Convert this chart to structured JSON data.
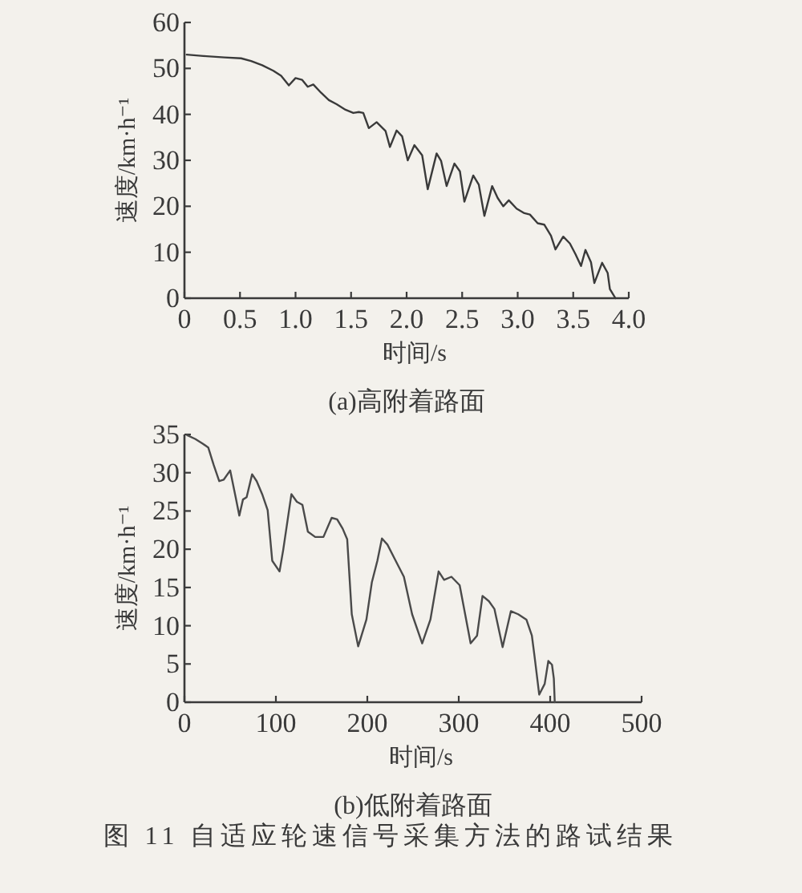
{
  "chart_data": [
    {
      "type": "line",
      "title": "(a)高附着路面",
      "xlabel": "时间/s",
      "ylabel": "速度/km·h⁻¹",
      "x": [
        0.02,
        0.17,
        0.36,
        0.51,
        0.6,
        0.7,
        0.8,
        0.87,
        0.94,
        1.0,
        1.06,
        1.11,
        1.16,
        1.23,
        1.3,
        1.37,
        1.45,
        1.52,
        1.57,
        1.61,
        1.66,
        1.73,
        1.81,
        1.85,
        1.91,
        1.96,
        2.01,
        2.07,
        2.14,
        2.19,
        2.27,
        2.31,
        2.36,
        2.43,
        2.48,
        2.52,
        2.6,
        2.65,
        2.7,
        2.77,
        2.82,
        2.87,
        2.92,
        2.99,
        3.06,
        3.11,
        3.18,
        3.24,
        3.3,
        3.34,
        3.41,
        3.47,
        3.52,
        3.57,
        3.61,
        3.66,
        3.69,
        3.76,
        3.81,
        3.83,
        3.88
      ],
      "series": [
        {
          "color": "#3a3a3a",
          "values": [
            53.0,
            52.7,
            52.4,
            52.2,
            51.6,
            50.7,
            49.5,
            48.4,
            46.3,
            47.9,
            47.5,
            46.0,
            46.5,
            44.7,
            43.1,
            42.2,
            41.0,
            40.3,
            40.5,
            40.3,
            37.0,
            38.3,
            36.4,
            32.9,
            36.5,
            35.2,
            30.0,
            33.3,
            31.1,
            23.7,
            31.5,
            29.9,
            24.4,
            29.3,
            27.6,
            21.0,
            26.7,
            24.7,
            17.9,
            24.4,
            21.8,
            20.0,
            21.3,
            19.5,
            18.5,
            18.2,
            16.3,
            16.0,
            13.6,
            10.6,
            13.4,
            11.9,
            9.6,
            7.0,
            10.5,
            7.8,
            3.3,
            7.7,
            5.5,
            2.0,
            0
          ]
        }
      ],
      "xlim": [
        0,
        4
      ],
      "xticks": [
        0,
        0.5,
        {
          "value": 1,
          "label": "1.0"
        },
        1.5,
        {
          "value": 2,
          "label": "2.0"
        },
        2.5,
        {
          "value": 3,
          "label": "3.0"
        },
        3.5,
        {
          "value": 4,
          "label": "4.0"
        }
      ],
      "ylim": [
        0,
        60
      ],
      "yticks": [
        0,
        10,
        20,
        30,
        40,
        50,
        60
      ]
    },
    {
      "type": "line",
      "title": "(b)低附着路面",
      "xlabel": "时间/s",
      "ylabel": "速度/km·h⁻¹",
      "x": [
        3,
        12,
        20,
        26,
        32,
        38,
        43,
        50,
        56,
        60,
        64,
        68,
        74,
        79,
        85,
        91,
        96,
        104,
        108,
        117,
        123,
        129,
        135,
        143,
        152,
        161,
        167,
        173,
        178,
        183,
        190,
        199,
        205,
        211,
        216,
        222,
        231,
        240,
        249,
        260,
        269,
        278,
        284,
        292,
        301,
        307,
        313,
        320,
        326,
        333,
        339,
        348,
        357,
        365,
        374,
        380,
        383,
        388,
        394,
        398,
        402,
        404,
        405
      ],
      "series": [
        {
          "color": "#4a4a4a",
          "values": [
            34.9,
            34.4,
            33.8,
            33.3,
            31.0,
            28.9,
            29.1,
            30.3,
            26.8,
            24.4,
            26.5,
            26.8,
            29.8,
            28.9,
            27.2,
            25.1,
            18.5,
            17.1,
            19.9,
            27.2,
            26.2,
            25.8,
            22.3,
            21.6,
            21.6,
            24.1,
            23.9,
            22.7,
            21.3,
            11.5,
            7.3,
            10.8,
            15.7,
            18.5,
            21.4,
            20.6,
            18.5,
            16.4,
            11.5,
            7.7,
            10.8,
            17.1,
            16.0,
            16.4,
            15.3,
            11.5,
            7.7,
            8.7,
            13.9,
            13.2,
            12.2,
            7.2,
            11.9,
            11.5,
            10.8,
            8.7,
            5.9,
            1.0,
            2.4,
            5.4,
            4.9,
            3.1,
            0
          ]
        }
      ],
      "xlim": [
        0,
        500
      ],
      "xticks": [
        0,
        100,
        200,
        300,
        400,
        500
      ],
      "ylim": [
        0,
        35
      ],
      "yticks": [
        0,
        5,
        10,
        15,
        20,
        25,
        30,
        35
      ],
      "annotations": [
        "图 11 自适应轮速信号采集方法的路试结果"
      ]
    }
  ]
}
